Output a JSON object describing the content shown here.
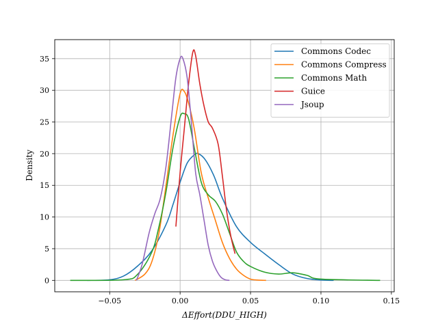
{
  "chart_data": {
    "type": "line",
    "title": "",
    "xlabel": "ΔEffort(DDU_HIGH)",
    "ylabel": "Density",
    "xlim": [
      -0.089,
      0.152
    ],
    "ylim": [
      -1.8,
      38.0
    ],
    "xticks": [
      -0.05,
      0.0,
      0.05,
      0.1,
      0.15
    ],
    "xtick_labels": [
      "−0.05",
      "0.00",
      "0.05",
      "0.10",
      "0.15"
    ],
    "yticks": [
      0,
      5,
      10,
      15,
      20,
      25,
      30,
      35
    ],
    "ytick_labels": [
      "0",
      "5",
      "10",
      "15",
      "20",
      "25",
      "30",
      "35"
    ],
    "grid": true,
    "legend_position": "top-right",
    "series": [
      {
        "name": "Commons Codec",
        "color": "#1f77b4",
        "x": [
          -0.066,
          -0.05,
          -0.04,
          -0.03,
          -0.02,
          -0.01,
          -0.005,
          0.0,
          0.005,
          0.01,
          0.013,
          0.018,
          0.024,
          0.03,
          0.04,
          0.05,
          0.06,
          0.07,
          0.08,
          0.09,
          0.1,
          0.109
        ],
        "y": [
          0.0,
          0.1,
          0.7,
          2.3,
          4.7,
          8.8,
          12.0,
          15.5,
          18.5,
          19.8,
          20.0,
          19.0,
          16.5,
          13.0,
          8.5,
          6.0,
          4.2,
          2.5,
          1.0,
          0.3,
          0.05,
          0.0
        ]
      },
      {
        "name": "Commons Compress",
        "color": "#ff7f0e",
        "x": [
          -0.032,
          -0.025,
          -0.02,
          -0.015,
          -0.01,
          -0.005,
          0.0,
          0.003,
          0.006,
          0.01,
          0.015,
          0.02,
          0.025,
          0.03,
          0.035,
          0.04,
          0.045,
          0.05,
          0.055,
          0.061
        ],
        "y": [
          0.0,
          1.0,
          3.0,
          7.5,
          15.0,
          23.0,
          29.5,
          29.8,
          28.0,
          24.0,
          17.0,
          13.0,
          9.5,
          6.0,
          3.5,
          1.8,
          0.8,
          0.2,
          0.05,
          0.0
        ]
      },
      {
        "name": "Commons Math",
        "color": "#2ca02c",
        "x": [
          -0.078,
          -0.04,
          -0.03,
          -0.02,
          -0.015,
          -0.01,
          -0.005,
          0.0,
          0.003,
          0.006,
          0.01,
          0.015,
          0.02,
          0.025,
          0.03,
          0.035,
          0.04,
          0.045,
          0.05,
          0.06,
          0.07,
          0.08,
          0.09,
          0.1,
          0.142
        ],
        "y": [
          0.0,
          0.1,
          1.0,
          4.5,
          8.5,
          14.0,
          21.0,
          25.8,
          26.3,
          25.5,
          21.0,
          15.5,
          13.5,
          12.5,
          10.5,
          7.5,
          4.5,
          3.0,
          2.2,
          1.3,
          1.0,
          1.2,
          0.8,
          0.2,
          0.0
        ]
      },
      {
        "name": "Guice",
        "color": "#d62728",
        "x": [
          -0.003,
          0.0,
          0.003,
          0.006,
          0.009,
          0.011,
          0.014,
          0.017,
          0.02,
          0.023,
          0.027,
          0.03,
          0.033,
          0.036,
          0.039
        ],
        "y": [
          8.5,
          17.0,
          24.0,
          31.0,
          36.0,
          35.5,
          31.0,
          27.5,
          25.0,
          24.0,
          21.5,
          16.5,
          11.0,
          7.0,
          4.2
        ]
      },
      {
        "name": "Jsoup",
        "color": "#9467bd",
        "x": [
          -0.031,
          -0.027,
          -0.022,
          -0.018,
          -0.014,
          -0.01,
          -0.006,
          -0.003,
          0.0,
          0.002,
          0.005,
          0.008,
          0.011,
          0.014,
          0.017,
          0.02,
          0.023,
          0.026,
          0.029,
          0.032,
          0.035
        ],
        "y": [
          0.0,
          2.5,
          7.5,
          10.5,
          13.0,
          18.0,
          26.0,
          32.0,
          35.0,
          35.0,
          32.0,
          25.0,
          17.0,
          13.5,
          9.5,
          5.5,
          3.0,
          1.5,
          0.5,
          0.1,
          0.0
        ]
      }
    ]
  }
}
